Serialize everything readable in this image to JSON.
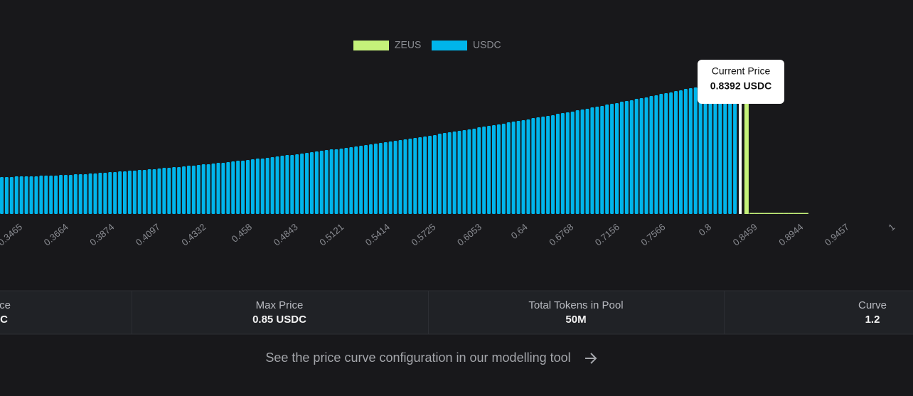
{
  "chart_data": {
    "type": "bar",
    "series": [
      {
        "name": "ZEUS",
        "color": "#c5f27a",
        "values": [
          155,
          1.5,
          1.5,
          1.5,
          1.5,
          1.5,
          1.5,
          1.5,
          1.5,
          1.5,
          1.5,
          1.5,
          1.5
        ]
      },
      {
        "name": "USDC",
        "color": "#00b5eb",
        "values": [
          52,
          52,
          52,
          53,
          53,
          53,
          53,
          53,
          54,
          54,
          54,
          54,
          55,
          55,
          55,
          56,
          56,
          56,
          57,
          57,
          58,
          58,
          59,
          59,
          60,
          60,
          61,
          61,
          62,
          62,
          63,
          63,
          64,
          65,
          65,
          66,
          66,
          67,
          68,
          68,
          69,
          70,
          70,
          71,
          72,
          72,
          73,
          74,
          75,
          75,
          76,
          77,
          78,
          78,
          79,
          80,
          81,
          82,
          83,
          83,
          84,
          85,
          86,
          87,
          88,
          89,
          90,
          91,
          91,
          92,
          93,
          94,
          95,
          96,
          97,
          98,
          99,
          100,
          101,
          102,
          103,
          104,
          105,
          106,
          107,
          108,
          109,
          110,
          111,
          113,
          114,
          115,
          116,
          117,
          118,
          119,
          120,
          122,
          123,
          124,
          125,
          126,
          127,
          129,
          130,
          131,
          132,
          133,
          135,
          136,
          137,
          138,
          139,
          141,
          142,
          143,
          144,
          146,
          147,
          148,
          150,
          151,
          152,
          154,
          155,
          156,
          158,
          159,
          160,
          162,
          163,
          164,
          166,
          167,
          169,
          170,
          171,
          173,
          174,
          176,
          177,
          178,
          180,
          181,
          183,
          184,
          186,
          187,
          189,
          190
        ]
      }
    ],
    "xticks": [
      0.3465,
      0.3664,
      0.3874,
      0.4097,
      0.4332,
      0.458,
      0.4843,
      0.5121,
      0.5414,
      0.5725,
      0.6053,
      0.64,
      0.6768,
      0.7156,
      0.7566,
      0.8,
      0.8459,
      0.8944,
      0.9457,
      1
    ],
    "annotation": {
      "title": "Current Price",
      "value": "0.8392 USDC"
    }
  },
  "stats": [
    {
      "label": "ce",
      "value": "C"
    },
    {
      "label": "Max Price",
      "value": "0.85 USDC"
    },
    {
      "label": "Total Tokens in Pool",
      "value": "50M"
    },
    {
      "label": "Curve",
      "value": "1.2"
    }
  ],
  "footer": {
    "link": "See the price curve configuration in our modelling tool"
  }
}
